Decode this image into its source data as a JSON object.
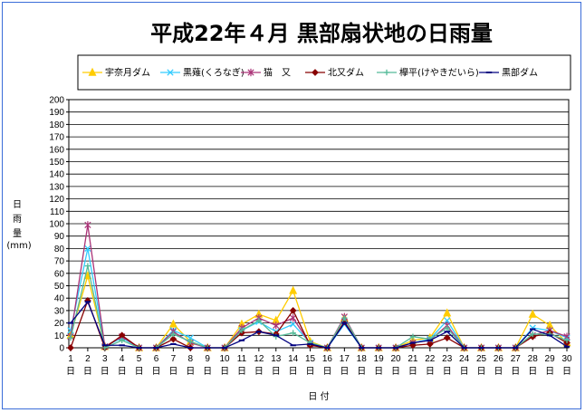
{
  "chart_data": {
    "type": "line",
    "title": "平成22年４月 黒部扇状地の日雨量",
    "xlabel": "日 付",
    "ylabel_chars": [
      "日",
      "雨",
      "量"
    ],
    "yunit": "(mm)",
    "ylim": [
      0,
      200
    ],
    "ytick_step": 10,
    "grid": true,
    "legend_position": "top",
    "x_day_suffix": "日",
    "x": [
      1,
      2,
      3,
      4,
      5,
      6,
      7,
      8,
      9,
      10,
      11,
      12,
      13,
      14,
      15,
      16,
      17,
      18,
      19,
      20,
      21,
      22,
      23,
      24,
      25,
      26,
      27,
      28,
      29,
      30
    ],
    "series": [
      {
        "name": "宇奈月ダム",
        "color": "#ffcc00",
        "marker": "triangle",
        "values": [
          10,
          58,
          1,
          9,
          0,
          0,
          19,
          5,
          0,
          0,
          19,
          27,
          22,
          46,
          5,
          0,
          24,
          0,
          0,
          0,
          6,
          8,
          28,
          0,
          0,
          0,
          0,
          27,
          18,
          4
        ]
      },
      {
        "name": "黒薙(くろなぎ)",
        "color": "#33ccff",
        "marker": "x",
        "values": [
          14,
          80,
          1,
          8,
          0,
          0,
          14,
          8,
          0,
          0,
          14,
          21,
          13,
          19,
          4,
          0,
          19,
          0,
          0,
          0,
          4,
          7,
          22,
          0,
          0,
          0,
          0,
          16,
          14,
          8
        ]
      },
      {
        "name": "猫　又",
        "color": "#aa3377",
        "marker": "star",
        "values": [
          9,
          99,
          1,
          9,
          0,
          0,
          13,
          4,
          0,
          0,
          16,
          24,
          18,
          24,
          3,
          0,
          25,
          0,
          0,
          0,
          4,
          6,
          18,
          0,
          0,
          0,
          0,
          10,
          14,
          9
        ]
      },
      {
        "name": "北又ダム",
        "color": "#880000",
        "marker": "diamond",
        "values": [
          0,
          38,
          0,
          10,
          0,
          0,
          7,
          0,
          0,
          0,
          12,
          13,
          11,
          30,
          2,
          0,
          21,
          0,
          0,
          0,
          2,
          3,
          8,
          0,
          0,
          0,
          0,
          9,
          12,
          4
        ]
      },
      {
        "name": "欅平(けやきだいら)",
        "color": "#55bb99",
        "marker": "plus",
        "values": [
          8,
          66,
          0,
          6,
          0,
          0,
          11,
          5,
          0,
          0,
          14,
          22,
          9,
          12,
          4,
          0,
          24,
          0,
          0,
          0,
          9,
          7,
          16,
          0,
          0,
          0,
          0,
          11,
          11,
          6
        ]
      },
      {
        "name": "黒部ダム",
        "color": "#000080",
        "marker": "dash",
        "values": [
          20,
          37,
          2,
          2,
          0,
          0,
          3,
          0,
          0,
          0,
          6,
          13,
          10,
          2,
          3,
          0,
          20,
          0,
          0,
          0,
          4,
          6,
          13,
          0,
          0,
          0,
          0,
          15,
          10,
          1
        ]
      }
    ]
  }
}
